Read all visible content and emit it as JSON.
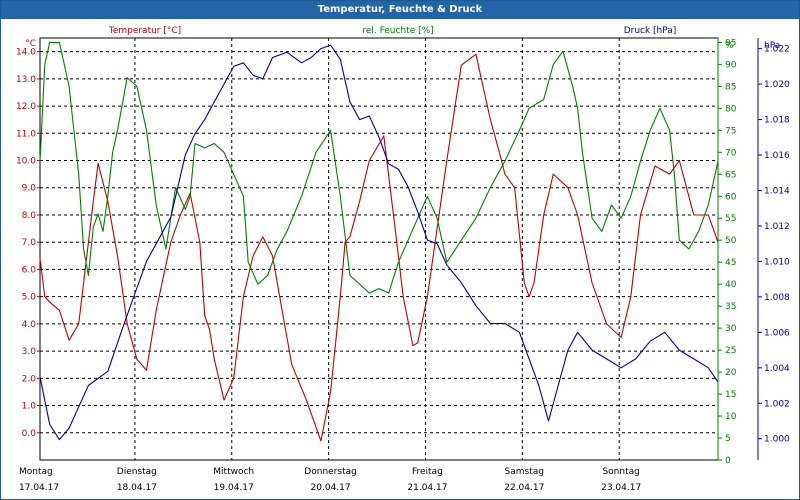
{
  "window": {
    "title": "Temperatur, Feuchte & Druck"
  },
  "colors": {
    "temperature": "#c00000",
    "humidity": "#008000",
    "pressure": "#00009c",
    "titlebar": "#2364a6"
  },
  "chart_data": {
    "type": "line",
    "title": "Temperatur, Feuchte & Druck",
    "x_range_days": [
      0,
      7
    ],
    "x_ticks": [
      {
        "day": "Montag",
        "date": "17.04.17"
      },
      {
        "day": "Dienstag",
        "date": "18.04.17"
      },
      {
        "day": "Mittwoch",
        "date": "19.04.17"
      },
      {
        "day": "Donnerstag",
        "date": "20.04.17"
      },
      {
        "day": "Freitag",
        "date": "21.04.17"
      },
      {
        "day": "Samstag",
        "date": "22.04.17"
      },
      {
        "day": "Sonntag",
        "date": "23.04.17"
      }
    ],
    "grid": true,
    "axes": {
      "temperature": {
        "label": "Temperatur [°C]",
        "unit": "°C",
        "ylim": [
          -1.0,
          14.5
        ],
        "ticks": [
          "0.0",
          "1.0",
          "2.0",
          "3.0",
          "4.0",
          "5.0",
          "6.0",
          "7.0",
          "8.0",
          "9.0",
          "10.0",
          "11.0",
          "12.0",
          "13.0",
          "14.0"
        ]
      },
      "humidity": {
        "label": "rel. Feuchte [%]",
        "unit": "%",
        "ylim": [
          0,
          96
        ],
        "ticks": [
          "0",
          "5",
          "10",
          "15",
          "20",
          "25",
          "30",
          "35",
          "40",
          "45",
          "50",
          "55",
          "60",
          "65",
          "70",
          "75",
          "80",
          "85",
          "90",
          "95"
        ]
      },
      "pressure": {
        "label": "Druck [hPa]",
        "unit": "hPa",
        "ylim": [
          0.9988,
          1.0226
        ],
        "ticks": [
          "1.000",
          "1.002",
          "1.004",
          "1.006",
          "1.008",
          "1.010",
          "1.012",
          "1.014",
          "1.016",
          "1.018",
          "1.020",
          "1.022"
        ]
      }
    },
    "series": [
      {
        "name": "Temperatur [°C]",
        "axis": "temperature",
        "x": [
          0,
          0.05,
          0.1,
          0.2,
          0.3,
          0.4,
          0.55,
          0.6,
          0.7,
          0.8,
          0.9,
          1.0,
          1.1,
          1.2,
          1.35,
          1.45,
          1.55,
          1.65,
          1.7,
          1.75,
          1.8,
          1.9,
          2.0,
          2.1,
          2.2,
          2.3,
          2.4,
          2.5,
          2.6,
          2.75,
          2.9,
          3.0,
          3.1,
          3.15,
          3.2,
          3.3,
          3.4,
          3.55,
          3.65,
          3.75,
          3.85,
          3.9,
          4.0,
          4.2,
          4.35,
          4.5,
          4.65,
          4.75,
          4.8,
          4.9,
          5.0,
          5.05,
          5.1,
          5.2,
          5.3,
          5.45,
          5.55,
          5.7,
          5.85,
          6.0,
          6.1,
          6.2,
          6.35,
          6.5,
          6.6,
          6.75,
          6.9,
          7.0
        ],
        "values": [
          6.4,
          5.0,
          4.8,
          4.5,
          3.4,
          4.0,
          8.5,
          9.9,
          8.5,
          6.5,
          4.0,
          2.7,
          2.3,
          4.5,
          7.0,
          8.0,
          8.8,
          7.0,
          4.3,
          3.8,
          2.7,
          1.2,
          2.0,
          5.0,
          6.5,
          7.2,
          6.5,
          4.5,
          2.5,
          1.2,
          -0.3,
          1.5,
          5.0,
          7.0,
          7.2,
          8.5,
          10.0,
          10.9,
          8.0,
          5.0,
          3.2,
          3.3,
          5.0,
          10.0,
          13.5,
          13.9,
          11.5,
          10.2,
          9.5,
          9.0,
          5.5,
          5.0,
          5.5,
          8.0,
          9.5,
          9.0,
          8.0,
          5.5,
          4.0,
          3.5,
          5.0,
          8.0,
          9.8,
          9.5,
          10.0,
          8.0,
          8.0,
          7.0
        ]
      },
      {
        "name": "rel. Feuchte [%]",
        "axis": "humidity",
        "x": [
          0,
          0.05,
          0.1,
          0.2,
          0.3,
          0.4,
          0.45,
          0.5,
          0.55,
          0.6,
          0.65,
          0.7,
          0.75,
          0.8,
          0.9,
          1.0,
          1.1,
          1.2,
          1.3,
          1.4,
          1.5,
          1.55,
          1.6,
          1.7,
          1.8,
          1.9,
          2.0,
          2.1,
          2.15,
          2.25,
          2.35,
          2.45,
          2.55,
          2.7,
          2.85,
          3.0,
          3.1,
          3.2,
          3.3,
          3.4,
          3.5,
          3.6,
          3.7,
          3.8,
          3.9,
          4.0,
          4.1,
          4.2,
          4.35,
          4.5,
          4.65,
          4.8,
          4.95,
          5.05,
          5.2,
          5.3,
          5.4,
          5.5,
          5.55,
          5.6,
          5.7,
          5.8,
          5.9,
          6.0,
          6.1,
          6.2,
          6.3,
          6.4,
          6.5,
          6.55,
          6.6,
          6.7,
          6.8,
          6.9,
          7.0
        ],
        "values": [
          68,
          90,
          95,
          95,
          85,
          65,
          48,
          42,
          53,
          56,
          52,
          60,
          70,
          75,
          87,
          85,
          75,
          58,
          48,
          62,
          57,
          60,
          72,
          71,
          72,
          70,
          65,
          60,
          45,
          40,
          42,
          48,
          52,
          60,
          70,
          75,
          60,
          42,
          40,
          38,
          39,
          38,
          45,
          50,
          55,
          60,
          55,
          45,
          50,
          55,
          62,
          68,
          75,
          80,
          82,
          90,
          93,
          85,
          80,
          70,
          55,
          52,
          58,
          55,
          60,
          68,
          75,
          80,
          75,
          65,
          50,
          48,
          52,
          58,
          68
        ]
      },
      {
        "name": "Druck [hPa]",
        "axis": "pressure",
        "x": [
          0,
          0.1,
          0.2,
          0.3,
          0.4,
          0.5,
          0.7,
          0.85,
          1.0,
          1.1,
          1.2,
          1.35,
          1.5,
          1.6,
          1.7,
          1.8,
          1.9,
          2.0,
          2.1,
          2.2,
          2.3,
          2.4,
          2.55,
          2.7,
          2.8,
          2.9,
          3.0,
          3.1,
          3.2,
          3.3,
          3.4,
          3.5,
          3.6,
          3.7,
          3.8,
          3.9,
          4.0,
          4.1,
          4.2,
          4.35,
          4.5,
          4.65,
          4.8,
          4.95,
          5.05,
          5.15,
          5.25,
          5.35,
          5.45,
          5.55,
          5.7,
          5.85,
          6.0,
          6.15,
          6.3,
          6.45,
          6.6,
          6.75,
          6.9,
          7.0
        ],
        "values": [
          1.0035,
          1.0008,
          0.99995,
          1.0006,
          1.0018,
          1.003,
          1.0038,
          1.0062,
          1.0085,
          1.01,
          1.011,
          1.0125,
          1.016,
          1.0172,
          1.018,
          1.019,
          1.02,
          1.021,
          1.0212,
          1.0205,
          1.0203,
          1.0215,
          1.0218,
          1.0212,
          1.0215,
          1.022,
          1.0222,
          1.0214,
          1.019,
          1.018,
          1.0182,
          1.017,
          1.0155,
          1.0152,
          1.0142,
          1.0128,
          1.0112,
          1.011,
          1.0098,
          1.0088,
          1.0075,
          1.0065,
          1.0065,
          1.006,
          1.0045,
          1.003,
          1.001,
          1.003,
          1.005,
          1.006,
          1.005,
          1.0045,
          1.004,
          1.0045,
          1.0055,
          1.006,
          1.005,
          1.0045,
          1.004,
          1.0032
        ]
      }
    ]
  }
}
